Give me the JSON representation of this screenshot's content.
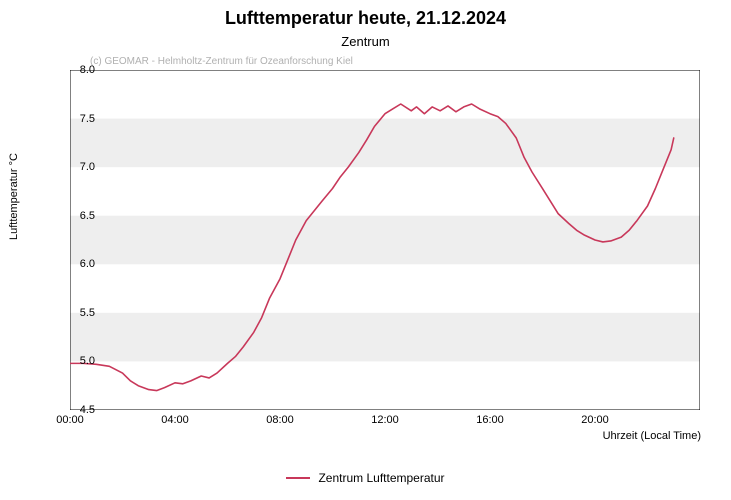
{
  "title": "Lufttemperatur heute, 21.12.2024",
  "title_fontsize": 18,
  "title_fontweight": "bold",
  "subtitle": "Zentrum",
  "subtitle_fontsize": 13,
  "copyright": "(c) GEOMAR - Helmholtz-Zentrum für Ozeanforschung Kiel",
  "copyright_fontsize": 10,
  "copyright_color": "#b0b0b0",
  "ylabel": "Lufttemperatur °C",
  "xlabel": "Uhrzeit (Local Time)",
  "axis_label_fontsize": 11,
  "tick_fontsize": 11,
  "background_color": "#ffffff",
  "plot_border_color": "#000000",
  "chart": {
    "type": "line",
    "xlim": [
      0,
      24
    ],
    "ylim": [
      4.5,
      8.0
    ],
    "xticks": [
      0,
      4,
      8,
      12,
      16,
      20
    ],
    "xtick_labels": [
      "00:00",
      "04:00",
      "08:00",
      "12:00",
      "16:00",
      "20:00"
    ],
    "yticks": [
      4.5,
      5.0,
      5.5,
      6.0,
      6.5,
      7.0,
      7.5,
      8.0
    ],
    "ytick_labels": [
      "4.5",
      "5.0",
      "5.5",
      "6.0",
      "6.5",
      "7.0",
      "7.5",
      "8.0"
    ],
    "band_color": "#eeeeee",
    "band_ranges": [
      [
        5.0,
        5.5
      ],
      [
        6.0,
        6.5
      ],
      [
        7.0,
        7.5
      ]
    ],
    "tick_len_major": 6,
    "tick_color": "#000000",
    "series": [
      {
        "name": "Zentrum Lufttemperatur",
        "color": "#c8385a",
        "line_width": 1.6,
        "data": [
          [
            0.0,
            4.98
          ],
          [
            0.2,
            4.98
          ],
          [
            0.5,
            4.98
          ],
          [
            1.0,
            4.97
          ],
          [
            1.5,
            4.95
          ],
          [
            2.0,
            4.88
          ],
          [
            2.3,
            4.8
          ],
          [
            2.6,
            4.75
          ],
          [
            3.0,
            4.71
          ],
          [
            3.3,
            4.7
          ],
          [
            3.6,
            4.73
          ],
          [
            4.0,
            4.78
          ],
          [
            4.3,
            4.77
          ],
          [
            4.6,
            4.8
          ],
          [
            5.0,
            4.85
          ],
          [
            5.3,
            4.83
          ],
          [
            5.6,
            4.88
          ],
          [
            6.0,
            4.98
          ],
          [
            6.3,
            5.05
          ],
          [
            6.6,
            5.15
          ],
          [
            7.0,
            5.3
          ],
          [
            7.3,
            5.45
          ],
          [
            7.6,
            5.65
          ],
          [
            8.0,
            5.85
          ],
          [
            8.3,
            6.05
          ],
          [
            8.6,
            6.25
          ],
          [
            9.0,
            6.45
          ],
          [
            9.3,
            6.55
          ],
          [
            9.6,
            6.65
          ],
          [
            10.0,
            6.78
          ],
          [
            10.3,
            6.9
          ],
          [
            10.6,
            7.0
          ],
          [
            11.0,
            7.15
          ],
          [
            11.3,
            7.28
          ],
          [
            11.6,
            7.42
          ],
          [
            12.0,
            7.55
          ],
          [
            12.3,
            7.6
          ],
          [
            12.6,
            7.65
          ],
          [
            13.0,
            7.58
          ],
          [
            13.2,
            7.62
          ],
          [
            13.5,
            7.55
          ],
          [
            13.8,
            7.62
          ],
          [
            14.1,
            7.58
          ],
          [
            14.4,
            7.63
          ],
          [
            14.7,
            7.57
          ],
          [
            15.0,
            7.62
          ],
          [
            15.3,
            7.65
          ],
          [
            15.6,
            7.6
          ],
          [
            16.0,
            7.55
          ],
          [
            16.3,
            7.52
          ],
          [
            16.6,
            7.45
          ],
          [
            17.0,
            7.3
          ],
          [
            17.3,
            7.1
          ],
          [
            17.6,
            6.95
          ],
          [
            18.0,
            6.78
          ],
          [
            18.3,
            6.65
          ],
          [
            18.6,
            6.52
          ],
          [
            19.0,
            6.42
          ],
          [
            19.3,
            6.35
          ],
          [
            19.6,
            6.3
          ],
          [
            20.0,
            6.25
          ],
          [
            20.3,
            6.23
          ],
          [
            20.6,
            6.24
          ],
          [
            21.0,
            6.28
          ],
          [
            21.3,
            6.35
          ],
          [
            21.6,
            6.45
          ],
          [
            22.0,
            6.6
          ],
          [
            22.3,
            6.78
          ],
          [
            22.6,
            6.98
          ],
          [
            22.9,
            7.18
          ],
          [
            23.0,
            7.3
          ]
        ]
      }
    ]
  },
  "legend": {
    "items": [
      {
        "label": "Zentrum Lufttemperatur",
        "color": "#c8385a"
      }
    ],
    "fontsize": 12
  }
}
